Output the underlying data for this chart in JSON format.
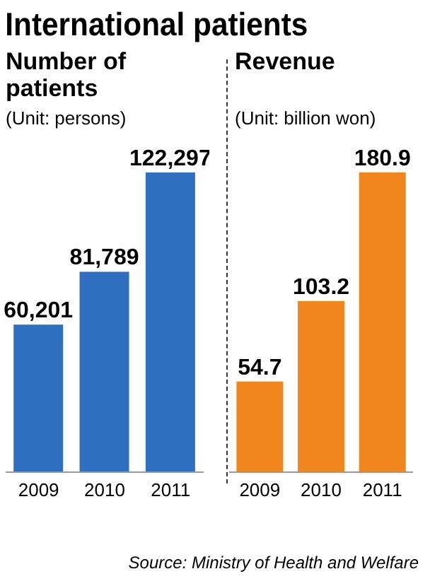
{
  "chart_data": [
    {
      "type": "bar",
      "title": "Number of patients",
      "subtitle": "(Unit: persons)",
      "annotations": [
        "International patients"
      ],
      "categories": [
        "2009",
        "2010",
        "2011"
      ],
      "values": [
        60201,
        81789,
        122297
      ],
      "value_labels": [
        "60,201",
        "81,789",
        "122,297"
      ],
      "color": "#2f6fc0"
    },
    {
      "type": "bar",
      "title": "Revenue",
      "subtitle": "(Unit: billion won)",
      "annotations": [
        "Source: Ministry of Health and Welfare"
      ],
      "categories": [
        "2009",
        "2010",
        "2011"
      ],
      "values": [
        54.7,
        103.2,
        180.9
      ],
      "color": "#f0861c",
      "data_labels": true
    }
  ]
}
